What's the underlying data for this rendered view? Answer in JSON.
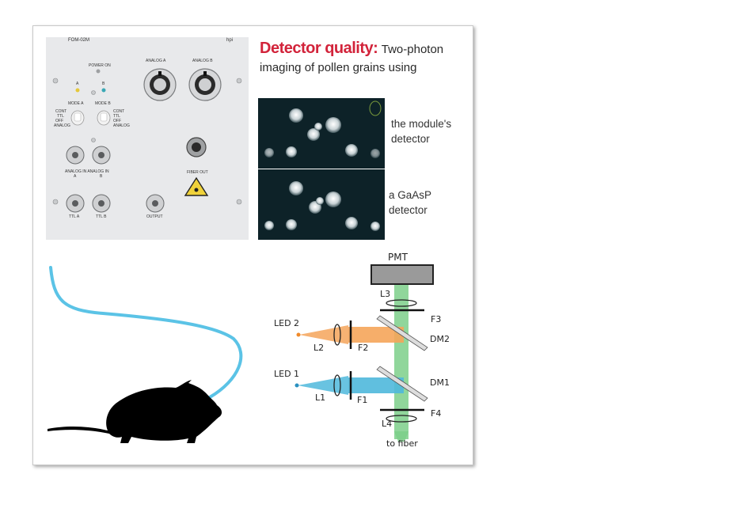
{
  "panel": {
    "model": "FOM-02M",
    "brand": "hpi",
    "power_on": "POWER ON",
    "analog_a": "ANALOG A",
    "analog_b": "ANALOG B",
    "mode_a": "MODE A",
    "mode_b": "MODE B",
    "led_a": "A",
    "led_b": "B",
    "switch_left": [
      "CONT",
      "TTL",
      "OFF",
      "ANALOG"
    ],
    "switch_right": [
      "CONT",
      "TTL",
      "OFF",
      "ANALOG"
    ],
    "analog_in": "ANALOG IN  ANALOG IN",
    "analog_in_a": "A",
    "analog_in_b": "B",
    "fiber_out": "FIBER OUT",
    "ttl_a": "TTL A",
    "ttl_b": "TTL B",
    "output": "OUTPUT"
  },
  "title": {
    "highlight": "Detector quality:",
    "rest": "Two-photon",
    "line2": "imaging of pollen grains using"
  },
  "micro": {
    "label1_line1": "the module's",
    "label1_line2": "detector",
    "label2_line1": "a GaAsP",
    "label2_line2": "detector"
  },
  "diagram": {
    "pmt": "PMT",
    "l3": "L3",
    "f3": "F3",
    "led2": "LED 2",
    "l2": "L2",
    "f2": "F2",
    "dm2": "DM2",
    "led1": "LED 1",
    "l1": "L1",
    "f1": "F1",
    "dm1": "DM1",
    "f4": "F4",
    "l4": "L4",
    "to_fiber": "to fiber"
  },
  "colors": {
    "accent_red": "#d2233a",
    "orange_beam": "#f5a55a",
    "blue_beam": "#4fb8dc",
    "green_beam": "#7ccf8a",
    "fiber": "#5bc3e6",
    "pmt": "#9a9a9a"
  }
}
